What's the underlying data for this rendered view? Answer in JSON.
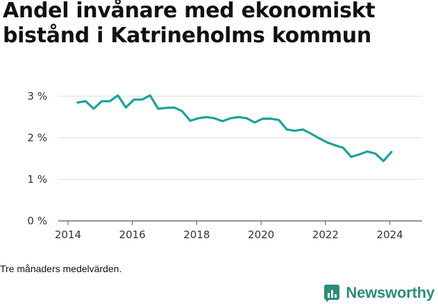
{
  "title": "Andel invånare med ekonomiskt bistånd i Katrineholms kommun",
  "footnote": "Tre månaders medelvärden.",
  "brand": {
    "name": "Newsworthy",
    "icon": "newsworthy-logo-icon",
    "color": "#2e8b7a"
  },
  "colors": {
    "line": "#17a398",
    "grid": "#d9d9d9",
    "axis": "#555555"
  },
  "chart_data": {
    "type": "line",
    "title": "Andel invånare med ekonomiskt bistånd i Katrineholms kommun",
    "xlabel": "",
    "ylabel": "",
    "xlim": [
      2013.7,
      2025.0
    ],
    "ylim": [
      0,
      3.0
    ],
    "yticks": [
      0,
      1,
      2,
      3
    ],
    "ytick_labels": [
      "0 %",
      "1 %",
      "2 %",
      "3 %"
    ],
    "xticks": [
      2014,
      2016,
      2018,
      2020,
      2022,
      2024
    ],
    "xtick_labels": [
      "2014",
      "2016",
      "2018",
      "2020",
      "2022",
      "2024"
    ],
    "grid": "horizontal",
    "series": [
      {
        "x": [
          2014.3,
          2014.55,
          2014.8,
          2015.05,
          2015.3,
          2015.55,
          2015.8,
          2016.05,
          2016.3,
          2016.55,
          2016.8,
          2017.05,
          2017.3,
          2017.55,
          2017.8,
          2018.05,
          2018.3,
          2018.55,
          2018.8,
          2019.05,
          2019.3,
          2019.55,
          2019.8,
          2020.05,
          2020.3,
          2020.55,
          2020.8,
          2021.05,
          2021.3,
          2021.55,
          2021.8,
          2022.05,
          2022.3,
          2022.55,
          2022.8,
          2023.05,
          2023.3,
          2023.55,
          2023.8,
          2024.05
        ],
        "values": [
          2.85,
          2.88,
          2.7,
          2.88,
          2.88,
          3.02,
          2.73,
          2.92,
          2.92,
          3.02,
          2.7,
          2.72,
          2.73,
          2.64,
          2.41,
          2.47,
          2.5,
          2.47,
          2.4,
          2.47,
          2.5,
          2.47,
          2.37,
          2.46,
          2.46,
          2.43,
          2.2,
          2.17,
          2.2,
          2.1,
          1.99,
          1.89,
          1.82,
          1.76,
          1.54,
          1.6,
          1.67,
          1.62,
          1.44,
          1.66
        ]
      }
    ]
  }
}
